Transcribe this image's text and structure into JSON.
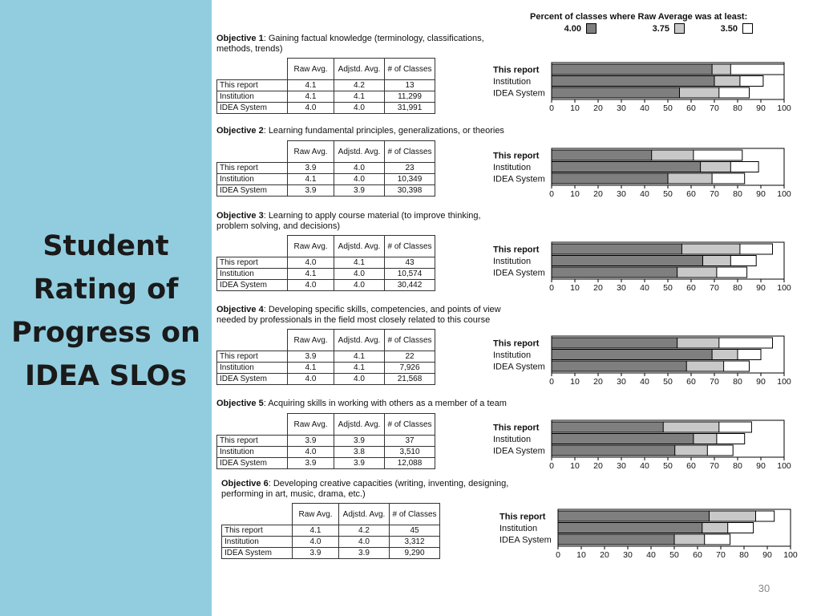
{
  "slide": {
    "title_lines": [
      "Student",
      "Rating of",
      "Progress on",
      "IDEA SLOs"
    ],
    "page_number": "30"
  },
  "legend": {
    "title": "Percent of classes where Raw Average was at least:",
    "items": [
      {
        "label": "4.00",
        "color": "#7f7f7f"
      },
      {
        "label": "3.75",
        "color": "#c8c8c8"
      },
      {
        "label": "3.50",
        "color": "#ffffff"
      }
    ]
  },
  "table_headers": [
    "Raw Avg.",
    "Adjstd. Avg.",
    "# of Classes"
  ],
  "chart_data": [
    {
      "type": "bar",
      "objective_label": "Objective 1",
      "objective_text": ": Gaining factual knowledge (terminology, classifications, methods, trends)",
      "categories": [
        "This report",
        "Institution",
        "IDEA System"
      ],
      "table": [
        {
          "raw": "4.1",
          "adjusted": "4.2",
          "classes": "13"
        },
        {
          "raw": "4.1",
          "adjusted": "4.1",
          "classes": "11,299"
        },
        {
          "raw": "4.0",
          "adjusted": "4.0",
          "classes": "31,991"
        }
      ],
      "series": [
        {
          "name": "4.00",
          "values": [
            69,
            70,
            55
          ]
        },
        {
          "name": "3.75",
          "values": [
            77,
            81,
            72
          ]
        },
        {
          "name": "3.50",
          "values": [
            100,
            91,
            85
          ]
        }
      ],
      "xlim": [
        0,
        100
      ],
      "xticks": [
        "0",
        "10",
        "20",
        "30",
        "40",
        "50",
        "60",
        "70",
        "80",
        "90",
        "100"
      ]
    },
    {
      "type": "bar",
      "objective_label": "Objective 2",
      "objective_text": ": Learning fundamental principles, generalizations, or theories",
      "categories": [
        "This report",
        "Institution",
        "IDEA System"
      ],
      "table": [
        {
          "raw": "3.9",
          "adjusted": "4.0",
          "classes": "23"
        },
        {
          "raw": "4.1",
          "adjusted": "4.0",
          "classes": "10,349"
        },
        {
          "raw": "3.9",
          "adjusted": "3.9",
          "classes": "30,398"
        }
      ],
      "series": [
        {
          "name": "4.00",
          "values": [
            43,
            64,
            50
          ]
        },
        {
          "name": "3.75",
          "values": [
            61,
            77,
            69
          ]
        },
        {
          "name": "3.50",
          "values": [
            82,
            89,
            83
          ]
        }
      ],
      "xlim": [
        0,
        100
      ],
      "xticks": [
        "0",
        "10",
        "20",
        "30",
        "40",
        "50",
        "60",
        "70",
        "80",
        "90",
        "100"
      ]
    },
    {
      "type": "bar",
      "objective_label": "Objective 3",
      "objective_text": ": Learning to apply course material (to improve thinking, problem solving, and decisions)",
      "categories": [
        "This report",
        "Institution",
        "IDEA System"
      ],
      "table": [
        {
          "raw": "4.0",
          "adjusted": "4.1",
          "classes": "43"
        },
        {
          "raw": "4.1",
          "adjusted": "4.0",
          "classes": "10,574"
        },
        {
          "raw": "4.0",
          "adjusted": "4.0",
          "classes": "30,442"
        }
      ],
      "series": [
        {
          "name": "4.00",
          "values": [
            56,
            65,
            54
          ]
        },
        {
          "name": "3.75",
          "values": [
            81,
            77,
            71
          ]
        },
        {
          "name": "3.50",
          "values": [
            95,
            88,
            84
          ]
        }
      ],
      "xlim": [
        0,
        100
      ],
      "xticks": [
        "0",
        "10",
        "20",
        "30",
        "40",
        "50",
        "60",
        "70",
        "80",
        "90",
        "100"
      ]
    },
    {
      "type": "bar",
      "objective_label": "Objective 4",
      "objective_text": ": Developing specific skills, competencies, and points of view needed by professionals in the field most closely related to this course",
      "categories": [
        "This report",
        "Institution",
        "IDEA System"
      ],
      "table": [
        {
          "raw": "3.9",
          "adjusted": "4.1",
          "classes": "22"
        },
        {
          "raw": "4.1",
          "adjusted": "4.1",
          "classes": "7,926"
        },
        {
          "raw": "4.0",
          "adjusted": "4.0",
          "classes": "21,568"
        }
      ],
      "series": [
        {
          "name": "4.00",
          "values": [
            54,
            69,
            58
          ]
        },
        {
          "name": "3.75",
          "values": [
            72,
            80,
            74
          ]
        },
        {
          "name": "3.50",
          "values": [
            95,
            90,
            85
          ]
        }
      ],
      "xlim": [
        0,
        100
      ],
      "xticks": [
        "0",
        "10",
        "20",
        "30",
        "40",
        "50",
        "60",
        "70",
        "80",
        "90",
        "100"
      ]
    },
    {
      "type": "bar",
      "objective_label": "Objective 5",
      "objective_text": ": Acquiring skills in working with others as a member of a team",
      "categories": [
        "This report",
        "Institution",
        "IDEA System"
      ],
      "table": [
        {
          "raw": "3.9",
          "adjusted": "3.9",
          "classes": "37"
        },
        {
          "raw": "4.0",
          "adjusted": "3.8",
          "classes": "3,510"
        },
        {
          "raw": "3.9",
          "adjusted": "3.9",
          "classes": "12,088"
        }
      ],
      "series": [
        {
          "name": "4.00",
          "values": [
            48,
            61,
            53
          ]
        },
        {
          "name": "3.75",
          "values": [
            72,
            71,
            67
          ]
        },
        {
          "name": "3.50",
          "values": [
            86,
            83,
            78
          ]
        }
      ],
      "xlim": [
        0,
        100
      ],
      "xticks": [
        "0",
        "10",
        "20",
        "30",
        "40",
        "50",
        "60",
        "70",
        "80",
        "90",
        "100"
      ]
    },
    {
      "type": "bar",
      "objective_label": "Objective 6",
      "objective_text": ": Developing creative capacities (writing, inventing, designing, performing in art, music, drama, etc.)",
      "categories": [
        "This report",
        "Institution",
        "IDEA System"
      ],
      "table": [
        {
          "raw": "4.1",
          "adjusted": "4.2",
          "classes": "45"
        },
        {
          "raw": "4.0",
          "adjusted": "4.0",
          "classes": "3,312"
        },
        {
          "raw": "3.9",
          "adjusted": "3.9",
          "classes": "9,290"
        }
      ],
      "series": [
        {
          "name": "4.00",
          "values": [
            65,
            62,
            50
          ]
        },
        {
          "name": "3.75",
          "values": [
            85,
            73,
            63
          ]
        },
        {
          "name": "3.50",
          "values": [
            93,
            84,
            74
          ]
        }
      ],
      "xlim": [
        0,
        100
      ],
      "xticks": [
        "0",
        "10",
        "20",
        "30",
        "40",
        "50",
        "60",
        "70",
        "80",
        "90",
        "100"
      ]
    }
  ]
}
